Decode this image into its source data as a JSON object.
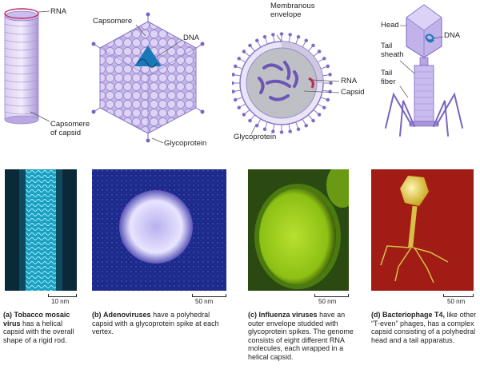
{
  "panels": {
    "a": {
      "labels": {
        "rna": "RNA",
        "capsomere_line1": "Capsomere",
        "capsomere_line2": "of capsid"
      },
      "scale": "10 nm",
      "caption": {
        "letter": "(a)",
        "name": "Tobacco mosaic virus",
        "rest": "has a helical capsid with the overall shape of a rigid rod."
      }
    },
    "b": {
      "labels": {
        "capsomere": "Capsomere",
        "dna": "DNA",
        "glycoprotein": "Glycoprotein"
      },
      "scale": "50 nm",
      "caption": {
        "letter": "(b)",
        "name": "Adenoviruses",
        "rest": "have a polyhedral capsid with a glycoprotein spike at each vertex."
      }
    },
    "c": {
      "labels": {
        "membranous_line1": "Membranous",
        "membranous_line2": "envelope",
        "rna": "RNA",
        "capsid": "Capsid",
        "glycoprotein": "Glycoprotein"
      },
      "scale": "50 nm",
      "caption": {
        "letter": "(c)",
        "name": "Influenza viruses",
        "rest": "have an outer envelope studded with glycoprotein spikes. The genome consists of eight different RNA molecules, each wrapped in a helical capsid."
      }
    },
    "d": {
      "labels": {
        "head": "Head",
        "dna": "DNA",
        "tail_sheath_line1": "Tail",
        "tail_sheath_line2": "sheath",
        "tail_fiber_line1": "Tail",
        "tail_fiber_line2": "fiber"
      },
      "scale": "50 nm",
      "caption": {
        "letter": "(d)",
        "name": "Bacteriophage T4,",
        "rest": "like other “T-even” phages, has a complex capsid consisting of a polyhedral head and a tail apparatus."
      }
    }
  },
  "colors": {
    "capsid_purple": "#b7a5e0",
    "capsid_dark": "#6d55b8",
    "nucleic_blue": "#1a78b8",
    "rna_red": "#c0285a",
    "tmv_photo": "#0a2a3a",
    "adeno_photo": "#1a1a7a",
    "flu_photo": "#1c3a10",
    "t4_photo": "#9a1a14"
  }
}
